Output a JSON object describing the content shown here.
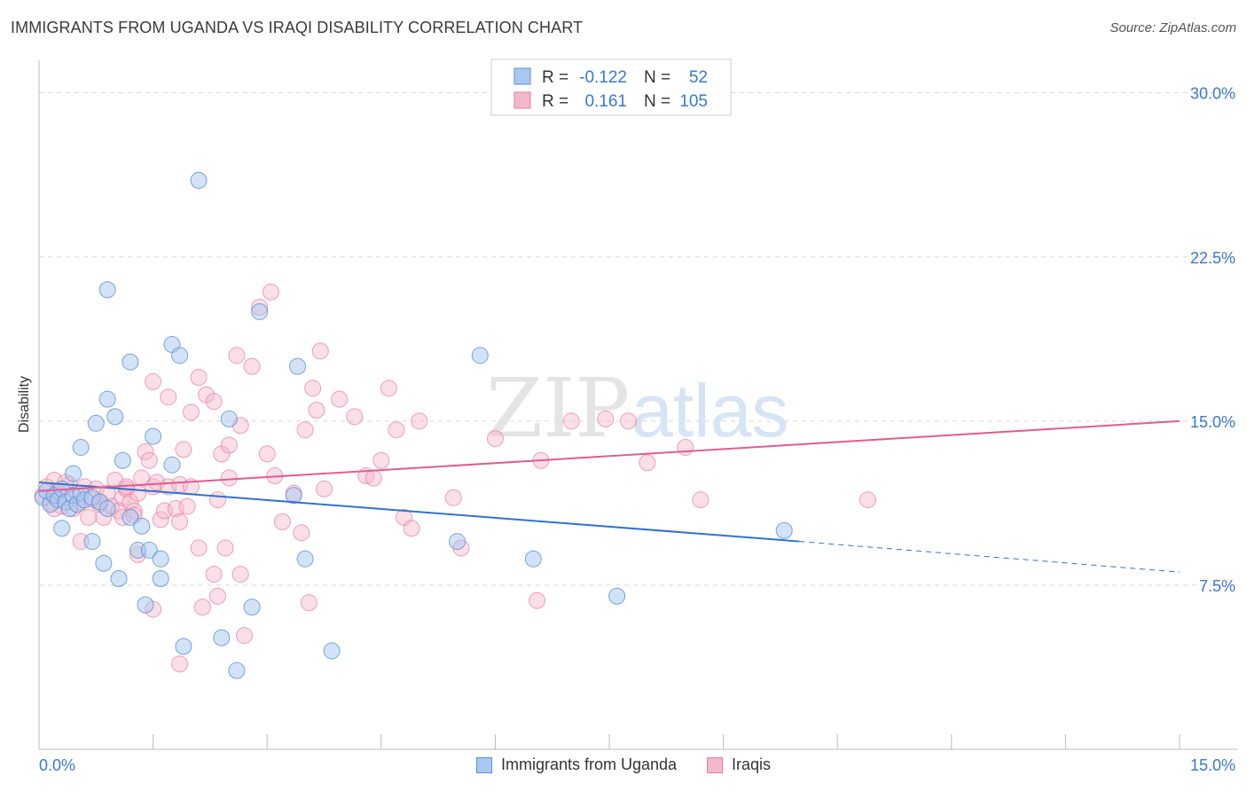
{
  "colors": {
    "blue_fill": "#a8c8f0",
    "blue_stroke": "#5a8fd6",
    "blue_line": "#2f72d0",
    "pink_fill": "#f4b8cc",
    "pink_stroke": "#e77aa0",
    "pink_line": "#e05d8e",
    "axis_text": "#3a78d0",
    "grid": "#d8d8d8"
  },
  "header": {
    "title": "IMMIGRANTS FROM UGANDA VS IRAQI DISABILITY CORRELATION CHART",
    "source": "Source: ZipAtlas.com"
  },
  "watermark": {
    "zip": "ZIP",
    "atlas": "atlas"
  },
  "legend_top": [
    {
      "series": "Immigrants from Uganda",
      "r_label": "R =",
      "r_value": "-0.122",
      "n_label": "N =",
      "n_value": "52"
    },
    {
      "series": "Iraqis",
      "r_label": "R =",
      "r_value": "0.161",
      "n_label": "N =",
      "n_value": "105"
    }
  ],
  "chart_data": {
    "type": "scatter",
    "title": "IMMIGRANTS FROM UGANDA VS IRAQI DISABILITY CORRELATION CHART",
    "xlabel": "",
    "ylabel": "Disability",
    "xlim": [
      0,
      15
    ],
    "ylim": [
      0,
      31
    ],
    "x_tick_labels": [
      "0.0%",
      "15.0%"
    ],
    "y_ticks": [
      7.5,
      15.0,
      22.5,
      30.0
    ],
    "y_tick_labels": [
      "7.5%",
      "15.0%",
      "22.5%",
      "30.0%"
    ],
    "grid": true,
    "legend_position": "top-center",
    "series": [
      {
        "name": "Immigrants from Uganda",
        "color": "blue",
        "R": -0.122,
        "N": 52,
        "trend": {
          "x0": 0.0,
          "y0": 12.2,
          "x1": 10.0,
          "y1": 9.5,
          "dash_to_x": 15.0,
          "dash_to_y": 8.1
        },
        "points": [
          [
            0.05,
            11.5
          ],
          [
            0.1,
            11.8
          ],
          [
            0.15,
            11.2
          ],
          [
            0.2,
            11.6
          ],
          [
            0.25,
            11.4
          ],
          [
            0.3,
            11.9
          ],
          [
            0.35,
            11.3
          ],
          [
            0.4,
            11.0
          ],
          [
            0.45,
            11.6
          ],
          [
            0.5,
            11.2
          ],
          [
            0.55,
            11.7
          ],
          [
            0.6,
            11.4
          ],
          [
            0.7,
            11.5
          ],
          [
            0.8,
            11.3
          ],
          [
            0.9,
            11.0
          ],
          [
            0.55,
            13.8
          ],
          [
            0.45,
            12.6
          ],
          [
            0.75,
            14.9
          ],
          [
            0.9,
            16.0
          ],
          [
            1.0,
            15.2
          ],
          [
            0.85,
            8.5
          ],
          [
            1.1,
            13.2
          ],
          [
            1.2,
            10.6
          ],
          [
            1.3,
            9.1
          ],
          [
            1.35,
            10.2
          ],
          [
            1.45,
            9.1
          ],
          [
            1.5,
            14.3
          ],
          [
            1.6,
            8.7
          ],
          [
            1.75,
            18.5
          ],
          [
            1.85,
            18.0
          ],
          [
            1.2,
            17.7
          ],
          [
            0.9,
            21.0
          ],
          [
            2.1,
            26.0
          ],
          [
            1.75,
            13.0
          ],
          [
            0.7,
            9.5
          ],
          [
            1.05,
            7.8
          ],
          [
            1.4,
            6.6
          ],
          [
            1.6,
            7.8
          ],
          [
            1.9,
            4.7
          ],
          [
            2.4,
            5.1
          ],
          [
            2.6,
            3.6
          ],
          [
            2.8,
            6.5
          ],
          [
            2.9,
            20.0
          ],
          [
            2.5,
            15.1
          ],
          [
            3.4,
            17.5
          ],
          [
            3.5,
            8.7
          ],
          [
            3.35,
            11.6
          ],
          [
            3.85,
            4.5
          ],
          [
            5.5,
            9.5
          ],
          [
            5.8,
            18.0
          ],
          [
            6.5,
            8.7
          ],
          [
            7.6,
            7.0
          ],
          [
            9.8,
            10.0
          ],
          [
            0.3,
            10.1
          ]
        ]
      },
      {
        "name": "Iraqis",
        "color": "pink",
        "R": 0.161,
        "N": 105,
        "trend": {
          "x0": 0.0,
          "y0": 11.8,
          "x1": 15.0,
          "y1": 15.0
        },
        "points": [
          [
            0.05,
            11.6
          ],
          [
            0.1,
            12.0
          ],
          [
            0.15,
            11.3
          ],
          [
            0.2,
            12.3
          ],
          [
            0.25,
            11.8
          ],
          [
            0.3,
            11.1
          ],
          [
            0.35,
            11.5
          ],
          [
            0.4,
            12.1
          ],
          [
            0.45,
            11.0
          ],
          [
            0.5,
            11.7
          ],
          [
            0.55,
            11.3
          ],
          [
            0.6,
            12.0
          ],
          [
            0.65,
            10.6
          ],
          [
            0.7,
            11.4
          ],
          [
            0.75,
            11.9
          ],
          [
            0.8,
            11.2
          ],
          [
            0.85,
            10.6
          ],
          [
            0.9,
            11.7
          ],
          [
            0.95,
            11.1
          ],
          [
            1.0,
            12.3
          ],
          [
            1.05,
            10.9
          ],
          [
            1.1,
            11.5
          ],
          [
            1.15,
            11.9
          ],
          [
            1.2,
            11.3
          ],
          [
            1.25,
            10.9
          ],
          [
            1.3,
            11.7
          ],
          [
            1.35,
            12.4
          ],
          [
            1.4,
            13.6
          ],
          [
            1.45,
            13.2
          ],
          [
            1.5,
            12.0
          ],
          [
            1.55,
            12.2
          ],
          [
            1.6,
            10.5
          ],
          [
            1.65,
            10.9
          ],
          [
            1.7,
            12.0
          ],
          [
            1.8,
            11.0
          ],
          [
            1.85,
            12.1
          ],
          [
            1.9,
            13.7
          ],
          [
            2.0,
            15.4
          ],
          [
            2.1,
            17.0
          ],
          [
            2.2,
            16.2
          ],
          [
            2.3,
            15.9
          ],
          [
            2.35,
            11.4
          ],
          [
            2.4,
            13.5
          ],
          [
            2.5,
            13.9
          ],
          [
            2.6,
            18.0
          ],
          [
            2.65,
            14.8
          ],
          [
            2.8,
            17.5
          ],
          [
            2.9,
            20.2
          ],
          [
            3.0,
            13.5
          ],
          [
            3.05,
            20.9
          ],
          [
            3.2,
            10.4
          ],
          [
            3.35,
            11.7
          ],
          [
            3.45,
            9.9
          ],
          [
            3.5,
            14.6
          ],
          [
            3.6,
            16.5
          ],
          [
            3.7,
            18.2
          ],
          [
            3.65,
            15.5
          ],
          [
            3.95,
            16.0
          ],
          [
            4.15,
            15.2
          ],
          [
            4.3,
            12.5
          ],
          [
            4.5,
            13.2
          ],
          [
            4.6,
            16.5
          ],
          [
            4.7,
            14.6
          ],
          [
            4.8,
            10.6
          ],
          [
            4.9,
            10.1
          ],
          [
            5.0,
            15.0
          ],
          [
            5.45,
            11.5
          ],
          [
            5.55,
            9.2
          ],
          [
            6.0,
            14.2
          ],
          [
            6.55,
            6.8
          ],
          [
            6.6,
            13.2
          ],
          [
            7.0,
            15.0
          ],
          [
            7.45,
            15.1
          ],
          [
            7.75,
            15.0
          ],
          [
            8.0,
            13.1
          ],
          [
            8.5,
            13.8
          ],
          [
            8.7,
            11.4
          ],
          [
            10.9,
            11.4
          ],
          [
            0.55,
            9.5
          ],
          [
            1.1,
            10.6
          ],
          [
            1.3,
            8.9
          ],
          [
            1.5,
            6.4
          ],
          [
            1.85,
            10.4
          ],
          [
            2.1,
            9.2
          ],
          [
            2.15,
            6.5
          ],
          [
            2.3,
            8.0
          ],
          [
            2.35,
            7.0
          ],
          [
            2.45,
            9.2
          ],
          [
            2.65,
            8.0
          ],
          [
            2.7,
            5.2
          ],
          [
            1.85,
            3.9
          ],
          [
            2.5,
            12.4
          ],
          [
            3.55,
            6.7
          ],
          [
            1.95,
            11.1
          ],
          [
            1.7,
            16.1
          ],
          [
            0.8,
            11.3
          ],
          [
            1.25,
            10.7
          ],
          [
            0.2,
            11.0
          ],
          [
            2.0,
            12.0
          ],
          [
            1.15,
            12.0
          ],
          [
            3.1,
            12.5
          ],
          [
            4.4,
            12.4
          ],
          [
            3.75,
            11.9
          ],
          [
            1.5,
            16.8
          ],
          [
            0.35,
            12.2
          ]
        ]
      }
    ]
  }
}
